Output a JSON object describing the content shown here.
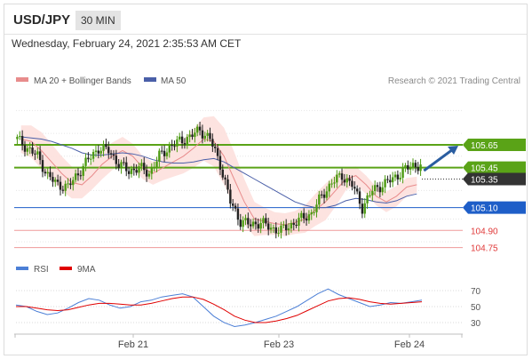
{
  "header": {
    "pair": "USD/JPY",
    "timeframe": "30 MIN"
  },
  "datetime": "Wednesday, February 24, 2021 2:35:53 AM CET",
  "legend": {
    "ma20_label": "MA 20 + Bollinger Bands",
    "ma50_label": "MA 50",
    "credit": "Research © 2021 Trading Central"
  },
  "colors": {
    "resistance": "#5aa317",
    "support": "#1e5ec8",
    "target": "#e03a3a",
    "pivot": "#333333",
    "band": "#fde0dd",
    "ma20": "#e88c8c",
    "ma50": "#4a5fa8",
    "rsi": "#4c7fd6",
    "rsi_ma": "#e00000",
    "candle_up": "#4c9a12",
    "candle_down": "#222222",
    "arrow": "#2a5da0"
  },
  "chart_data": [
    {
      "type": "line",
      "title": "USD/JPY 30 MIN",
      "x_ticks": [
        "Feb 21",
        "Feb 23",
        "Feb 24"
      ],
      "ylim": [
        104.7,
        106.0
      ],
      "levels": [
        {
          "label": "105.65",
          "value": 105.65,
          "kind": "resistance"
        },
        {
          "label": "105.45",
          "value": 105.45,
          "kind": "resistance"
        },
        {
          "label": "105.35",
          "value": 105.35,
          "kind": "pivot"
        },
        {
          "label": "105.10",
          "value": 105.1,
          "kind": "support"
        },
        {
          "label": "104.90",
          "value": 104.9,
          "kind": "target"
        },
        {
          "label": "104.75",
          "value": 104.75,
          "kind": "target"
        }
      ],
      "series": [
        {
          "name": "MA 20 + Bollinger Bands",
          "values": [
            105.7,
            105.68,
            105.6,
            105.5,
            105.4,
            105.32,
            105.3,
            105.38,
            105.48,
            105.55,
            105.6,
            105.55,
            105.45,
            105.4,
            105.45,
            105.5,
            105.55,
            105.62,
            105.7,
            105.68,
            105.55,
            105.35,
            105.15,
            105.0,
            104.98,
            104.96,
            104.95,
            104.97,
            105.0,
            105.08,
            105.15,
            105.25,
            105.35,
            105.38,
            105.3,
            105.2,
            105.15,
            105.2,
            105.28,
            105.3
          ]
        },
        {
          "name": "MA 50",
          "values": [
            105.72,
            105.71,
            105.7,
            105.68,
            105.65,
            105.62,
            105.58,
            105.56,
            105.56,
            105.57,
            105.58,
            105.57,
            105.55,
            105.52,
            105.5,
            105.49,
            105.49,
            105.5,
            105.52,
            105.53,
            105.5,
            105.45,
            105.4,
            105.35,
            105.3,
            105.25,
            105.2,
            105.15,
            105.12,
            105.1,
            105.1,
            105.12,
            105.16,
            105.18,
            105.17,
            105.15,
            105.14,
            105.16,
            105.2,
            105.22
          ]
        },
        {
          "name": "Price",
          "values": [
            105.7,
            105.62,
            105.55,
            105.38,
            105.3,
            105.28,
            105.4,
            105.52,
            105.62,
            105.6,
            105.48,
            105.42,
            105.45,
            105.4,
            105.55,
            105.63,
            105.68,
            105.72,
            105.78,
            105.7,
            105.48,
            105.15,
            104.98,
            104.95,
            104.97,
            104.92,
            104.9,
            104.95,
            105.0,
            105.05,
            105.2,
            105.32,
            105.38,
            105.3,
            105.1,
            105.25,
            105.3,
            105.35,
            105.42,
            105.47
          ]
        }
      ],
      "forecast_target": 105.65
    },
    {
      "type": "line",
      "ylim": [
        20,
        80
      ],
      "y_ticks": [
        "70",
        "50",
        "30"
      ],
      "series": [
        {
          "name": "RSI",
          "values": [
            52,
            50,
            44,
            40,
            42,
            48,
            55,
            60,
            58,
            52,
            48,
            50,
            56,
            58,
            62,
            64,
            66,
            62,
            50,
            38,
            30,
            25,
            27,
            30,
            34,
            38,
            44,
            50,
            58,
            66,
            72,
            65,
            60,
            55,
            50,
            52,
            55,
            54,
            56,
            58
          ]
        },
        {
          "name": "9MA",
          "values": [
            50,
            50,
            48,
            46,
            45,
            46,
            49,
            52,
            54,
            54,
            53,
            52,
            52,
            54,
            57,
            60,
            62,
            62,
            59,
            53,
            46,
            38,
            33,
            30,
            30,
            32,
            35,
            39,
            45,
            51,
            57,
            60,
            61,
            59,
            56,
            54,
            53,
            54,
            55,
            56
          ]
        }
      ]
    }
  ]
}
